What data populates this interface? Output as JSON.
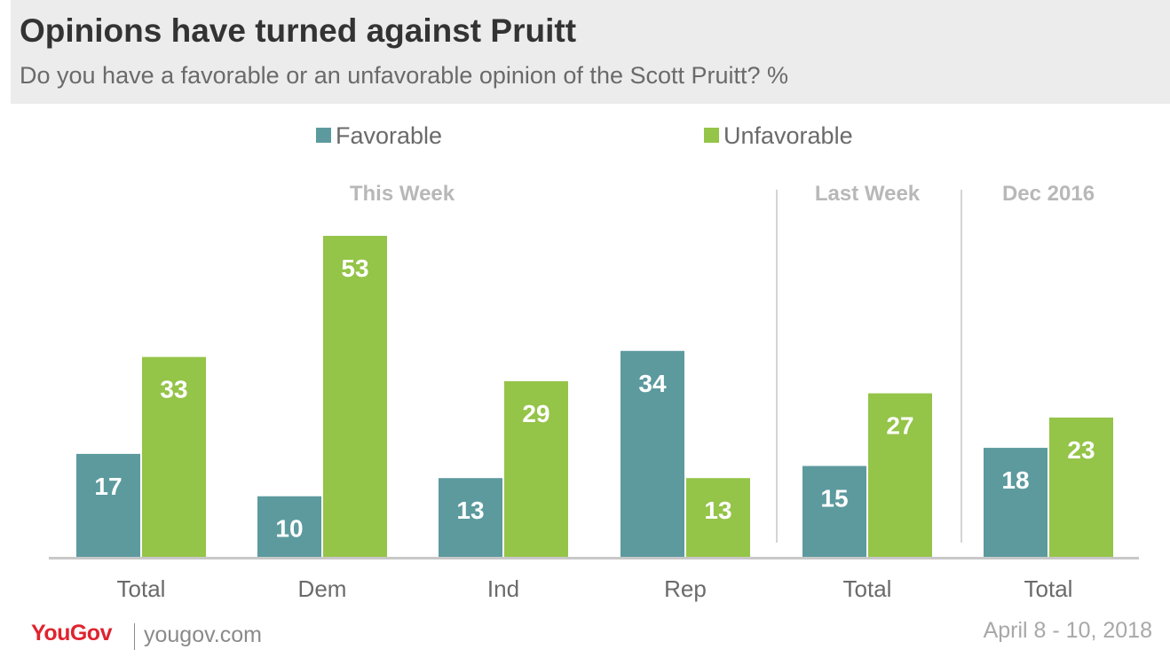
{
  "chart_data": {
    "type": "bar",
    "title": "Opinions have turned against Pruitt",
    "subtitle": "Do you have a favorable or an unfavorable opinion of the Scott Pruitt? %",
    "categories": [
      "Total",
      "Dem",
      "Ind",
      "Rep",
      "Total",
      "Total"
    ],
    "groups": [
      {
        "label": "This Week",
        "categories": [
          0,
          1,
          2,
          3
        ]
      },
      {
        "label": "Last Week",
        "categories": [
          4
        ]
      },
      {
        "label": "Dec 2016",
        "categories": [
          5
        ]
      }
    ],
    "series": [
      {
        "name": "Favorable",
        "color": "#5c9a9e",
        "values": [
          17,
          10,
          13,
          34,
          15,
          18
        ]
      },
      {
        "name": "Unfavorable",
        "color": "#94c448",
        "values": [
          33,
          53,
          29,
          13,
          27,
          23
        ]
      }
    ],
    "ylim": [
      0,
      60
    ],
    "grid": false,
    "legend": "top-center"
  },
  "footer": {
    "brand": "YouGov",
    "site": "yougov.com",
    "date": "April 8 - 10, 2018"
  }
}
